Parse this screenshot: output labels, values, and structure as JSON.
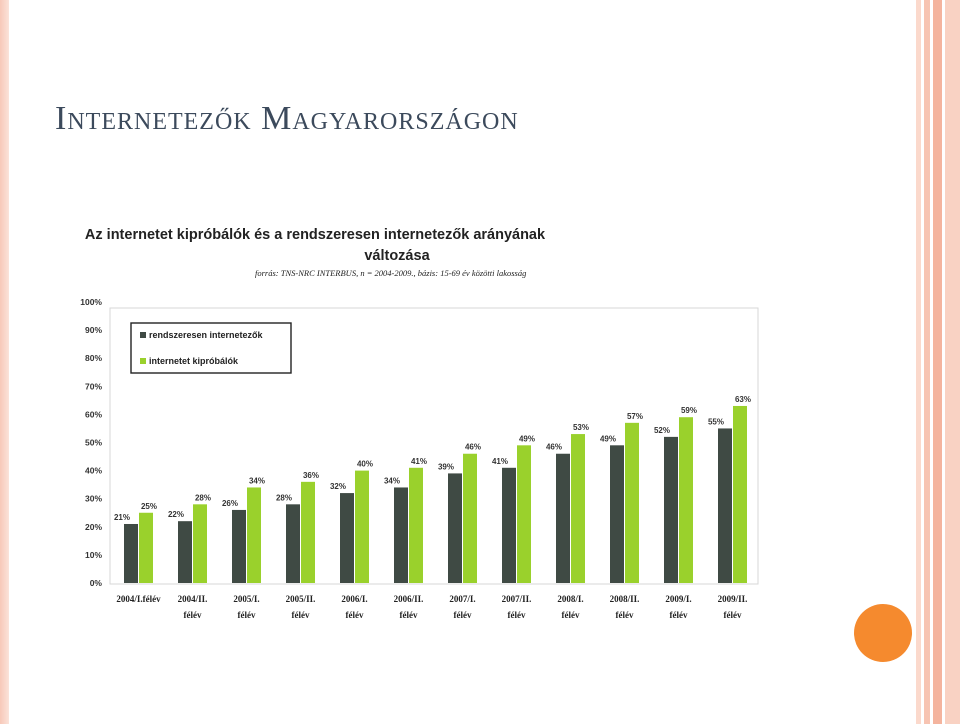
{
  "slide": {
    "title": "Internetezők Magyarországon",
    "accent": "#f58a2e"
  },
  "chart_data": {
    "type": "bar",
    "title": "Az internetet kipróbálók és a rendszeresen internetezők arányának változása",
    "subtitle": "forrás: TNS-NRC INTERBUS, n = 2004-2009., bázis: 15-69 év közötti lakosság",
    "categories": [
      [
        "2004/I.félév",
        ""
      ],
      [
        "2004/II.",
        "félév"
      ],
      [
        "2005/I.",
        "félév"
      ],
      [
        "2005/II.",
        "félév"
      ],
      [
        "2006/I.",
        "félév"
      ],
      [
        "2006/II.",
        "félév"
      ],
      [
        "2007/I.",
        "félév"
      ],
      [
        "2007/II.",
        "félév"
      ],
      [
        "2008/I.",
        "félév"
      ],
      [
        "2008/II.",
        "félév"
      ],
      [
        "2009/I.",
        "félév"
      ],
      [
        "2009/II.",
        "félév"
      ]
    ],
    "series": [
      {
        "name": "rendszeresen internetezők",
        "color": "#3f4a44",
        "values": [
          21,
          22,
          26,
          28,
          32,
          34,
          39,
          41,
          46,
          49,
          52,
          55
        ]
      },
      {
        "name": "internetet kipróbálók",
        "color": "#9ad12c",
        "values": [
          25,
          28,
          34,
          36,
          40,
          41,
          46,
          49,
          53,
          57,
          59,
          63
        ]
      }
    ],
    "ylim": [
      0,
      100
    ],
    "yticks": [
      "0%",
      "10%",
      "20%",
      "30%",
      "40%",
      "50%",
      "60%",
      "70%",
      "80%",
      "90%",
      "100%"
    ],
    "value_suffix": "%",
    "legend": "top-left",
    "grid": false
  }
}
